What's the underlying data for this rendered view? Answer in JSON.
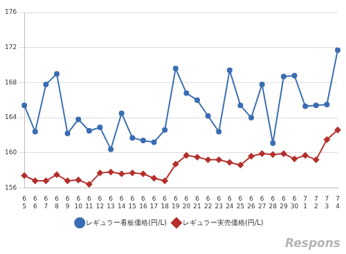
{
  "chart_data": {
    "type": "line",
    "categories": [
      [
        "6",
        "5"
      ],
      [
        "6",
        "6"
      ],
      [
        "6",
        "7"
      ],
      [
        "6",
        "8"
      ],
      [
        "6",
        "9"
      ],
      [
        "6",
        "10"
      ],
      [
        "6",
        "11"
      ],
      [
        "6",
        "12"
      ],
      [
        "6",
        "13"
      ],
      [
        "6",
        "14"
      ],
      [
        "6",
        "15"
      ],
      [
        "6",
        "16"
      ],
      [
        "6",
        "17"
      ],
      [
        "6",
        "18"
      ],
      [
        "6",
        "19"
      ],
      [
        "6",
        "20"
      ],
      [
        "6",
        "21"
      ],
      [
        "6",
        "22"
      ],
      [
        "6",
        "23"
      ],
      [
        "6",
        "24"
      ],
      [
        "6",
        "25"
      ],
      [
        "6",
        "26"
      ],
      [
        "6",
        "27"
      ],
      [
        "6",
        "28"
      ],
      [
        "6",
        "29"
      ],
      [
        "6",
        "30"
      ],
      [
        "7",
        "1"
      ],
      [
        "7",
        "2"
      ],
      [
        "7",
        "3"
      ],
      [
        "7",
        "4"
      ]
    ],
    "series": [
      {
        "name": "レギュラー看板価格(円/L)",
        "color": "#3a6db3",
        "marker": "circle",
        "values": [
          165.4,
          162.4,
          167.8,
          169.0,
          162.2,
          163.8,
          162.5,
          162.9,
          160.4,
          164.5,
          161.7,
          161.4,
          161.2,
          162.6,
          169.6,
          166.8,
          166.0,
          164.2,
          162.4,
          169.4,
          165.4,
          164.0,
          167.8,
          161.1,
          168.7,
          168.8,
          165.3,
          165.4,
          165.5,
          171.7
        ]
      },
      {
        "name": "レギュラー実売価格(円/L)",
        "color": "#b3302c",
        "marker": "diamond",
        "values": [
          157.4,
          156.8,
          156.8,
          157.5,
          156.8,
          156.9,
          156.4,
          157.7,
          157.8,
          157.6,
          157.7,
          157.6,
          157.1,
          156.8,
          158.7,
          159.7,
          159.5,
          159.2,
          159.2,
          158.9,
          158.6,
          159.6,
          159.9,
          159.8,
          159.9,
          159.3,
          159.7,
          159.2,
          161.5,
          162.6
        ]
      }
    ],
    "ylim": [
      156,
      176
    ],
    "yticks": [
      156,
      160,
      164,
      168,
      172,
      176
    ],
    "grid": true,
    "legend": "bottom",
    "annotation": "Respons"
  }
}
